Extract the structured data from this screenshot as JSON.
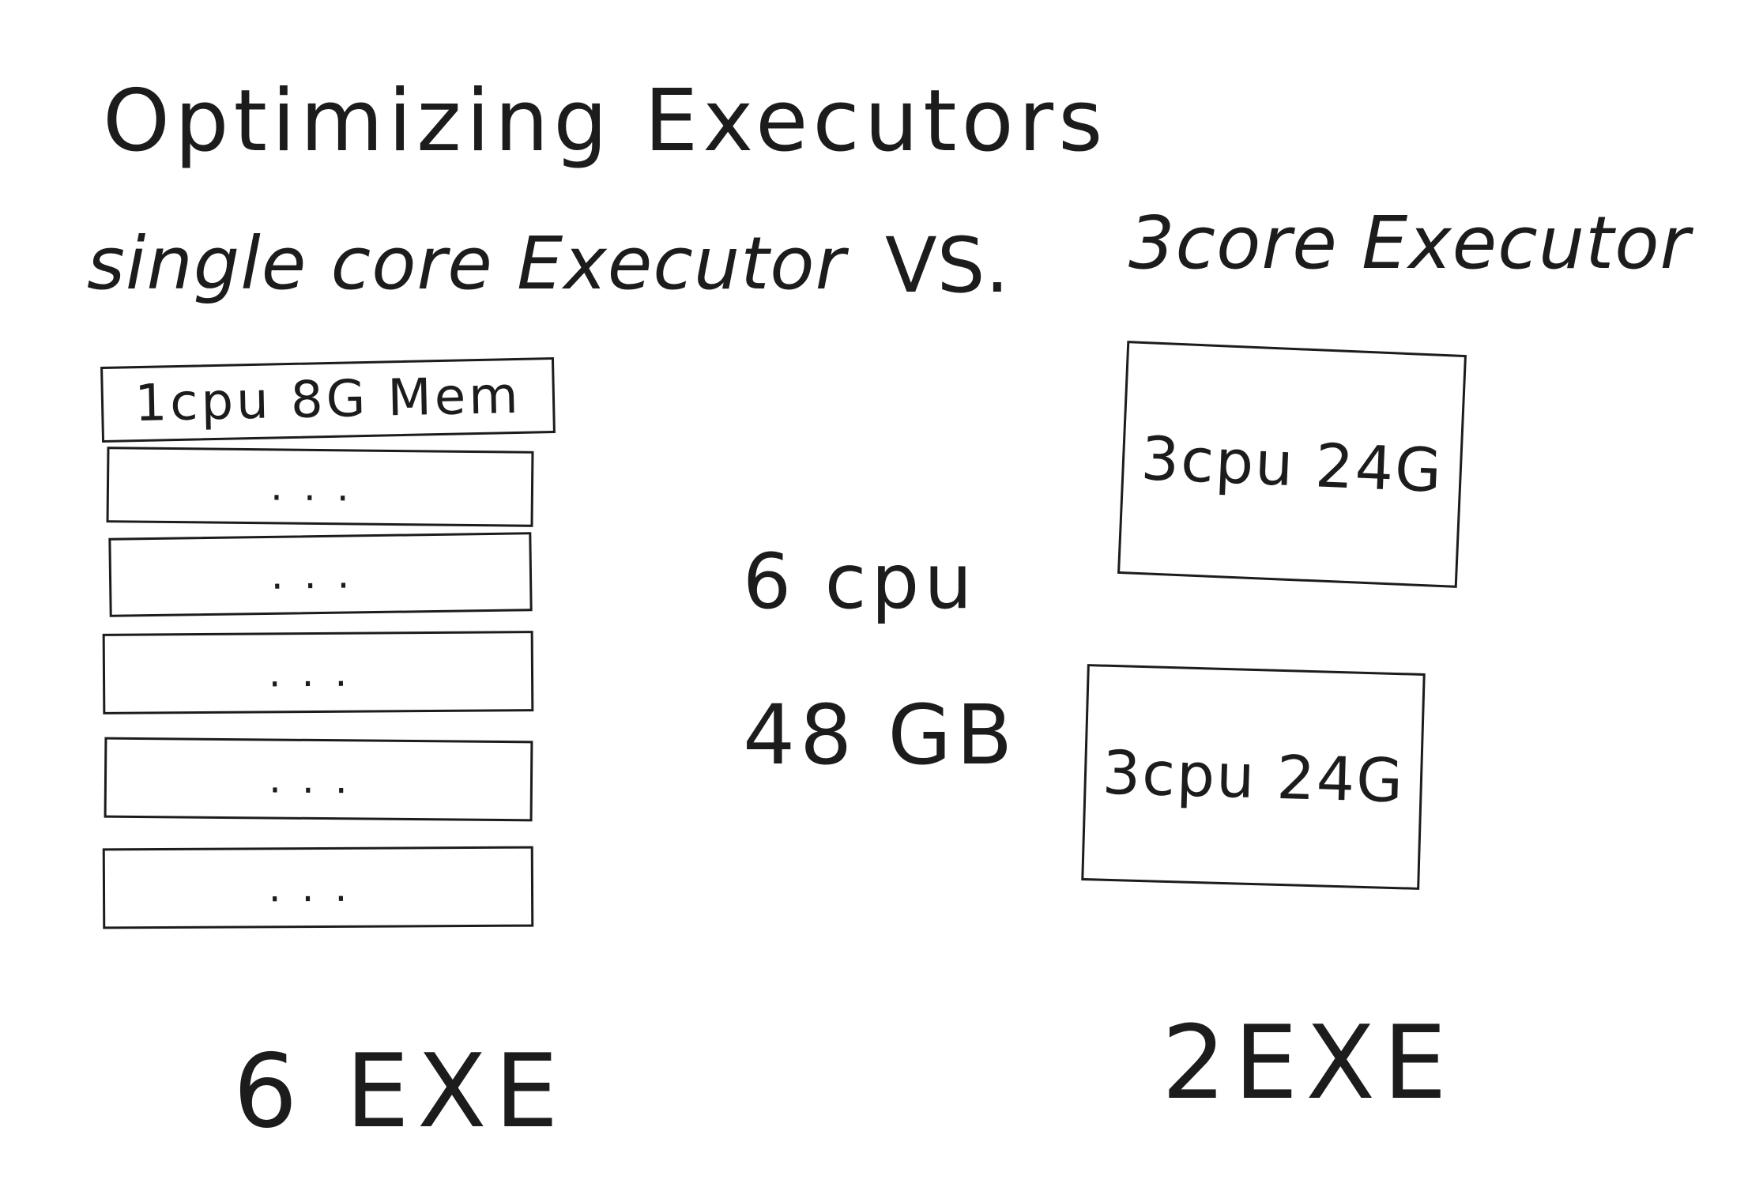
{
  "title": "Optimizing Executors",
  "left_heading": "single core Executor",
  "vs_label": "VS.",
  "right_heading": "3core Executor",
  "single_core_executors": [
    {
      "label": "1cpu  8G Mem"
    },
    {
      "label": "..."
    },
    {
      "label": "..."
    },
    {
      "label": "..."
    },
    {
      "label": "..."
    },
    {
      "label": "..."
    }
  ],
  "totals": {
    "cpu": "6 cpu",
    "memory": "48 GB"
  },
  "three_core_executors": [
    {
      "label": "3cpu 24G"
    },
    {
      "label": "3cpu 24G"
    }
  ],
  "left_count": "6 EXE",
  "right_count": "2EXE"
}
